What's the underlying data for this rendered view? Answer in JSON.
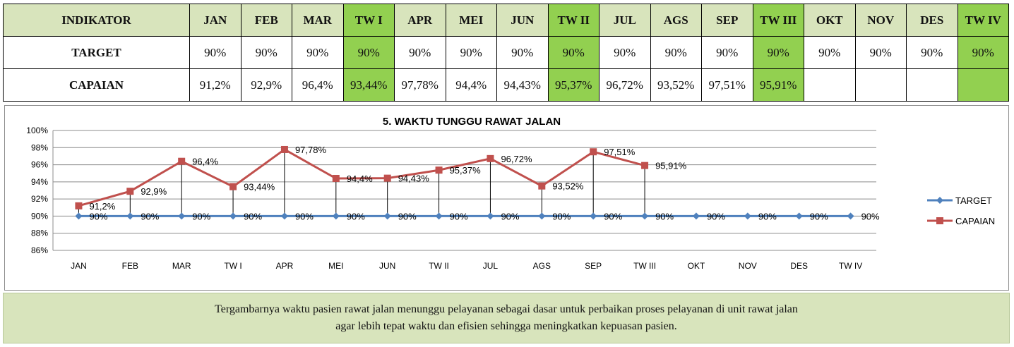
{
  "table": {
    "header_label": "INDIKATOR",
    "columns": [
      "JAN",
      "FEB",
      "MAR",
      "TW I",
      "APR",
      "MEI",
      "JUN",
      "TW II",
      "JUL",
      "AGS",
      "SEP",
      "TW III",
      "OKT",
      "NOV",
      "DES",
      "TW IV"
    ],
    "quarter_columns": [
      "TW I",
      "TW II",
      "TW III",
      "TW IV"
    ],
    "rows": [
      {
        "label": "TARGET",
        "values": [
          "90%",
          "90%",
          "90%",
          "90%",
          "90%",
          "90%",
          "90%",
          "90%",
          "90%",
          "90%",
          "90%",
          "90%",
          "90%",
          "90%",
          "90%",
          "90%"
        ]
      },
      {
        "label": "CAPAIAN",
        "values": [
          "91,2%",
          "92,9%",
          "96,4%",
          "93,44%",
          "97,78%",
          "94,4%",
          "94,43%",
          "95,37%",
          "96,72%",
          "93,52%",
          "97,51%",
          "95,91%",
          "",
          "",
          "",
          ""
        ]
      }
    ],
    "colors": {
      "header_bg": "#d8e4bc",
      "quarter_bg": "#92d050"
    }
  },
  "chart_data": {
    "type": "line",
    "title": "5. WAKTU TUNGGU RAWAT JALAN",
    "categories": [
      "JAN",
      "FEB",
      "MAR",
      "TW I",
      "APR",
      "MEI",
      "JUN",
      "TW II",
      "JUL",
      "AGS",
      "SEP",
      "TW III",
      "OKT",
      "NOV",
      "DES",
      "TW IV"
    ],
    "series": [
      {
        "name": "TARGET",
        "color": "#4f81bd",
        "marker": "diamond",
        "values": [
          90,
          90,
          90,
          90,
          90,
          90,
          90,
          90,
          90,
          90,
          90,
          90,
          90,
          90,
          90,
          90
        ],
        "labels": [
          "90%",
          "90%",
          "90%",
          "90%",
          "90%",
          "90%",
          "90%",
          "90%",
          "90%",
          "90%",
          "90%",
          "90%",
          "90%",
          "90%",
          "90%",
          "90%"
        ]
      },
      {
        "name": "CAPAIAN",
        "color": "#c0504d",
        "marker": "square",
        "values": [
          91.2,
          92.9,
          96.4,
          93.44,
          97.78,
          94.4,
          94.43,
          95.37,
          96.72,
          93.52,
          97.51,
          95.91,
          null,
          null,
          null,
          null
        ],
        "labels": [
          "91,2%",
          "92,9%",
          "96,4%",
          "93,44%",
          "97,78%",
          "94,4%",
          "94,43%",
          "95,37%",
          "96,72%",
          "93,52%",
          "97,51%",
          "95,91%",
          "",
          "",
          "",
          ""
        ]
      }
    ],
    "y_ticks": [
      "86%",
      "88%",
      "90%",
      "92%",
      "94%",
      "96%",
      "98%",
      "100%"
    ],
    "ylim": [
      86,
      100
    ],
    "y_step": 2,
    "grid": true,
    "drop_lines": true,
    "legend_position": "right"
  },
  "note": {
    "line1": "Tergambarnya waktu pasien rawat jalan menunggu pelayanan sebagai dasar untuk perbaikan proses pelayanan di unit rawat jalan",
    "line2": "agar lebih tepat waktu dan efisien sehingga meningkatkan kepuasan pasien."
  }
}
